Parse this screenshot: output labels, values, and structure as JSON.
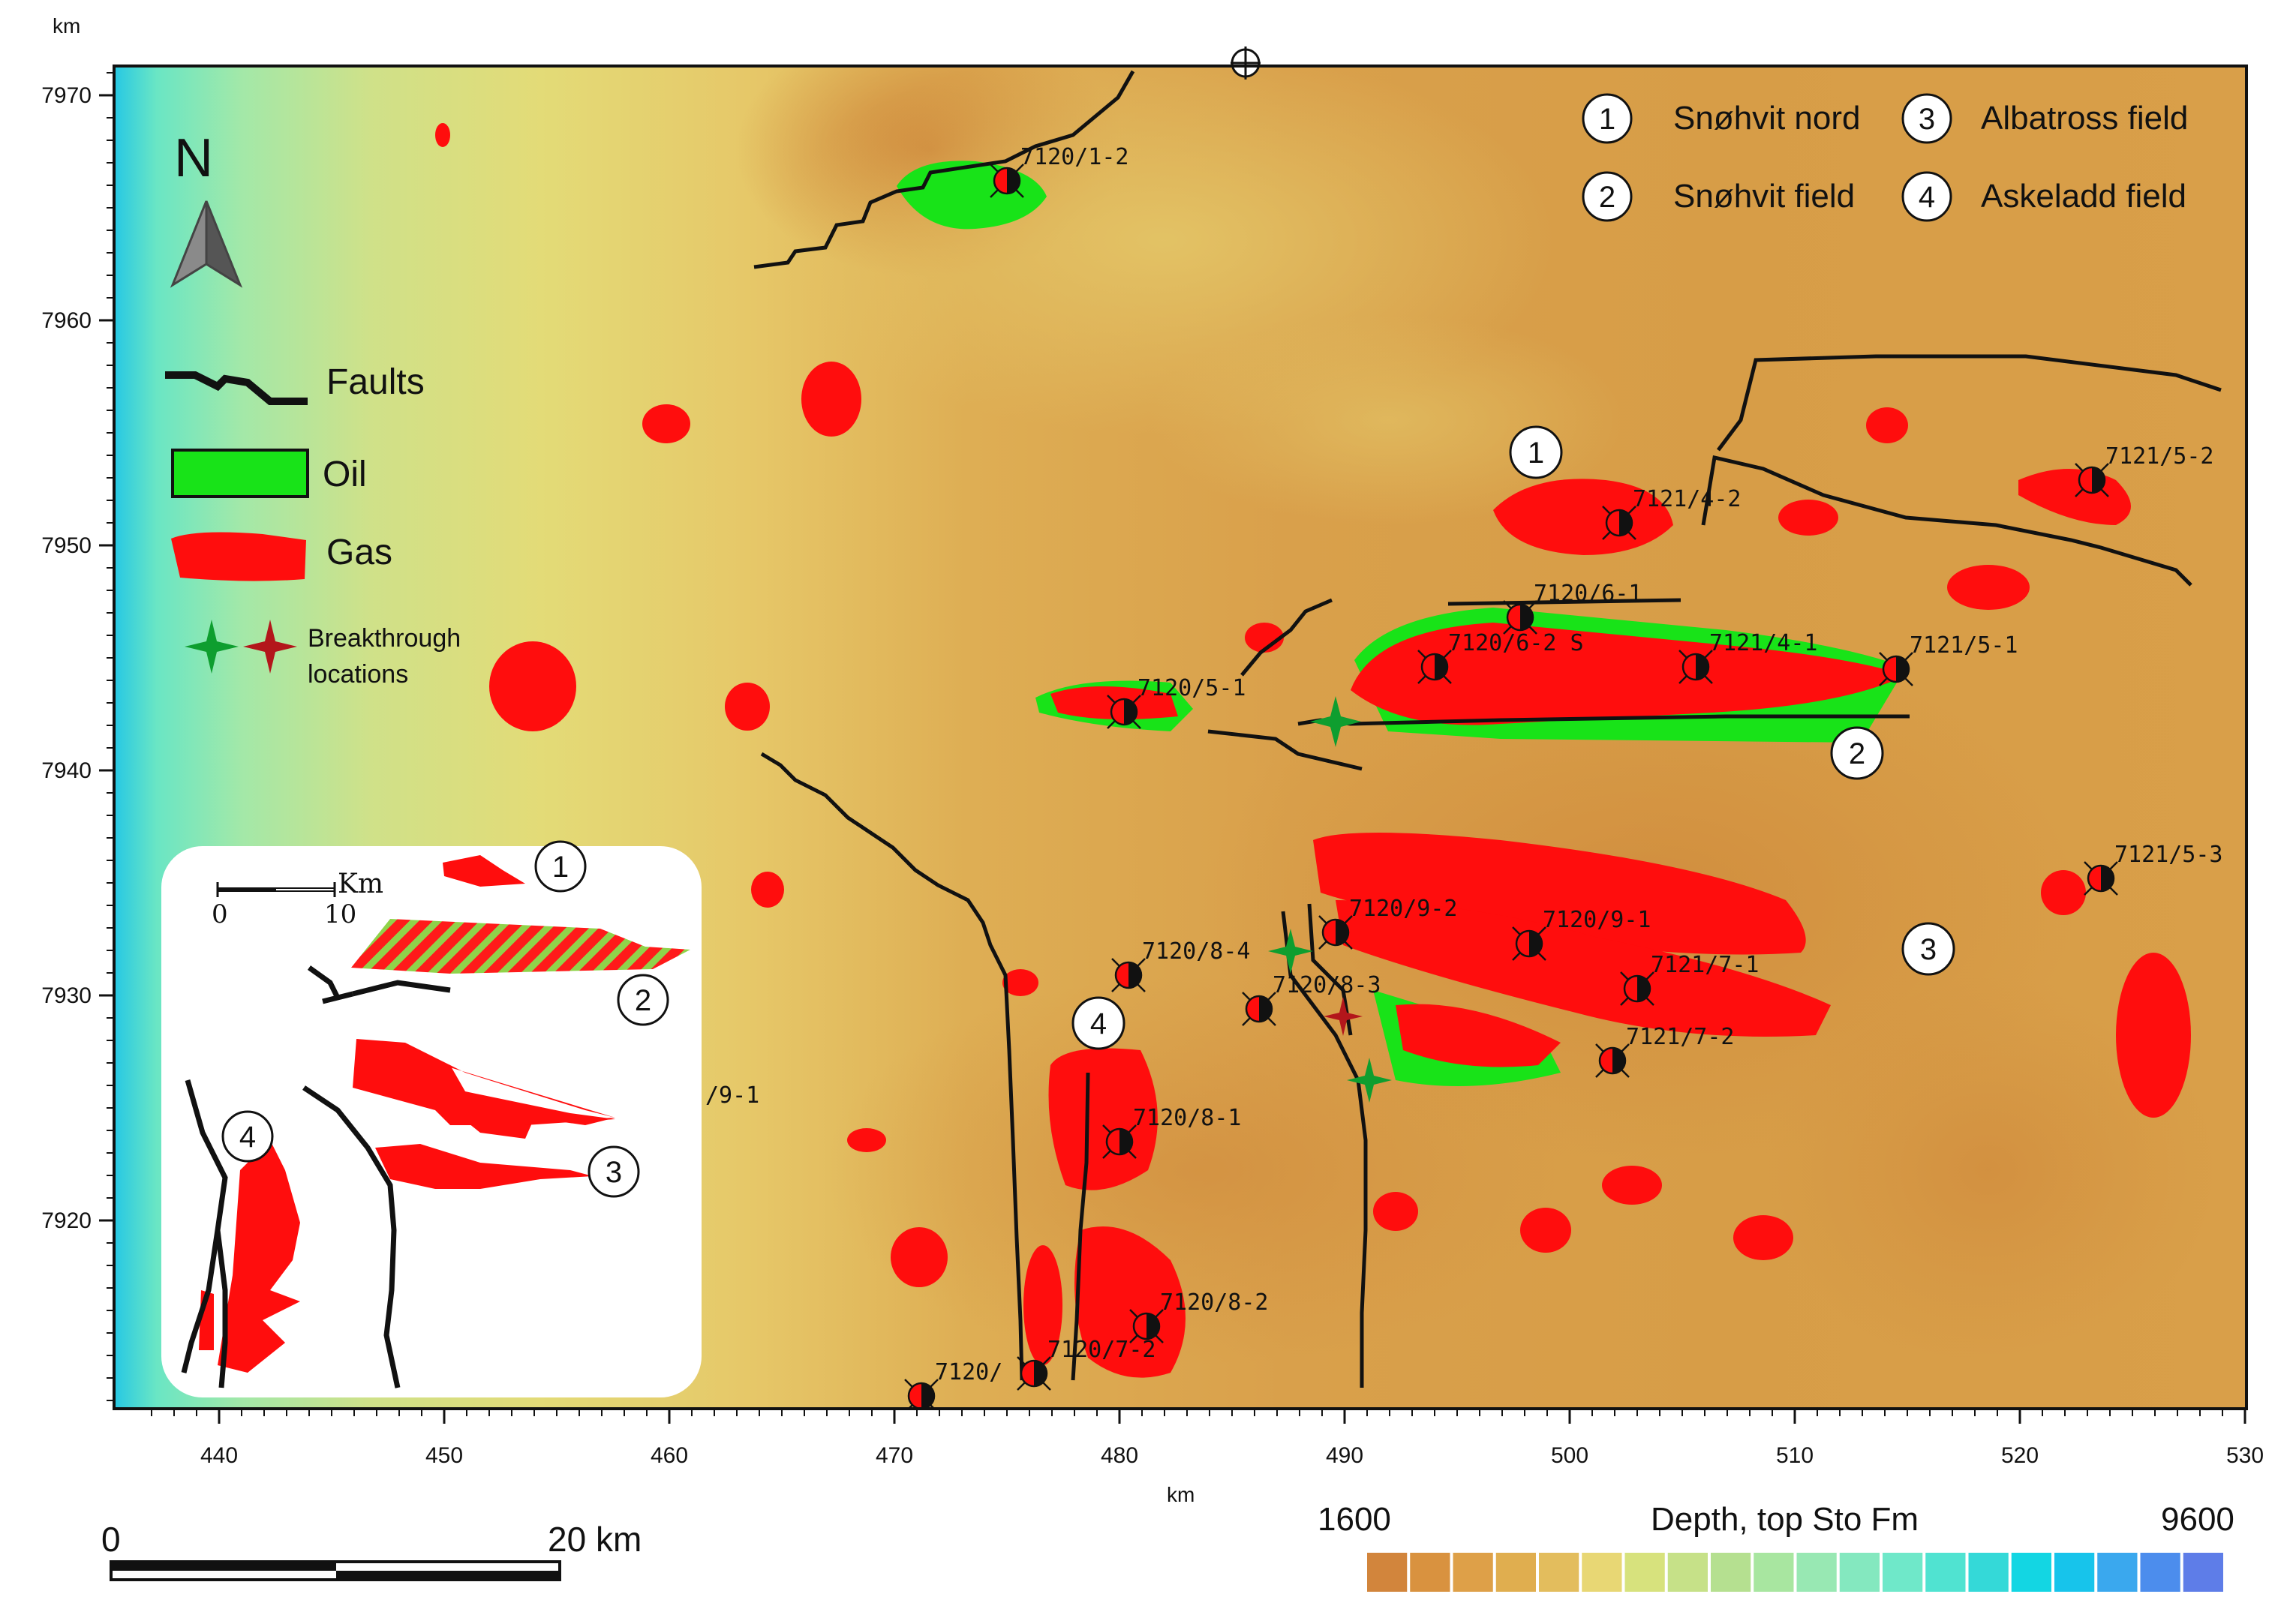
{
  "axes": {
    "x_unit": "km",
    "y_unit": "km",
    "x_ticks": [
      "440",
      "450",
      "460",
      "470",
      "480",
      "490",
      "500",
      "510",
      "520",
      "530"
    ],
    "y_ticks": [
      "7970",
      "7960",
      "7950",
      "7940",
      "7930",
      "7920"
    ]
  },
  "north_arrow": {
    "label": "N",
    "icon": "north-arrow-icon"
  },
  "legend": {
    "faults": "Faults",
    "oil": "Oil",
    "gas": "Gas",
    "breakthrough_line1": "Breakthrough",
    "breakthrough_line2": "locations"
  },
  "field_key": [
    {
      "number": "1",
      "name": "Snøhvit nord"
    },
    {
      "number": "2",
      "name": "Snøhvit field"
    },
    {
      "number": "3",
      "name": "Albatross field"
    },
    {
      "number": "4",
      "name": "Askeladd field"
    }
  ],
  "map_markers": [
    "1",
    "2",
    "3",
    "4"
  ],
  "wells": [
    {
      "label": "7120/1-2",
      "x": 475.0,
      "y": 7966.2
    },
    {
      "label": "7121/4-2",
      "x": 502.2,
      "y": 7951.0
    },
    {
      "label": "7121/5-2",
      "x": 523.2,
      "y": 7952.9
    },
    {
      "label": "7120/6-1",
      "x": 497.8,
      "y": 7946.8
    },
    {
      "label": "7120/6-2 S",
      "x": 494.0,
      "y": 7944.6
    },
    {
      "label": "7121/4-1",
      "x": 505.6,
      "y": 7944.6
    },
    {
      "label": "7121/5-1",
      "x": 514.5,
      "y": 7944.5
    },
    {
      "label": "7120/5-1",
      "x": 480.2,
      "y": 7942.6
    },
    {
      "label": "7121/5-3",
      "x": 523.6,
      "y": 7935.2
    },
    {
      "label": "7120/9-2",
      "x": 489.6,
      "y": 7932.8
    },
    {
      "label": "7120/9-1",
      "x": 498.2,
      "y": 7932.3
    },
    {
      "label": "7120/8-4",
      "x": 480.4,
      "y": 7930.9
    },
    {
      "label": "7121/7-1",
      "x": 503.0,
      "y": 7930.3
    },
    {
      "label": "7120/8-3",
      "x": 486.2,
      "y": 7929.4
    },
    {
      "label": "7121/7-2",
      "x": 501.9,
      "y": 7927.1
    },
    {
      "label": "7120/8-1",
      "x": 480.0,
      "y": 7923.5
    },
    {
      "label": "7120/8-2",
      "x": 481.2,
      "y": 7915.3
    },
    {
      "label": "7120/7-2",
      "x": 476.2,
      "y": 7913.2
    },
    {
      "label": "7120/",
      "x": 471.2,
      "y": 7912.2
    }
  ],
  "inset": {
    "scale_label": "Km",
    "scale_ticks": [
      "0",
      "10"
    ],
    "numbers": [
      "1",
      "2",
      "3",
      "4"
    ],
    "partial_label": "/9-1"
  },
  "scale_bar": {
    "start": "0",
    "end": "20 km"
  },
  "color_bar": {
    "min": "1600",
    "max": "9600",
    "title": "Depth, top Sto Fm",
    "colors": [
      "#d2853c",
      "#d9923f",
      "#dea048",
      "#e0ae4f",
      "#e3bd5d",
      "#e8d774",
      "#d7e27d",
      "#c6e188",
      "#b5e090",
      "#a8e6a0",
      "#98e8b3",
      "#84e8bf",
      "#6fe8c9",
      "#50e3d1",
      "#34d9d8",
      "#13d6e3",
      "#17c4eb",
      "#3aa8ee",
      "#4c8ded",
      "#5e7de8"
    ]
  },
  "colors": {
    "oil": "#18e318",
    "gas": "#ff0d0d",
    "fault": "#111111",
    "breakthrough_green": "#0e9e2f",
    "breakthrough_red": "#b3161b"
  }
}
